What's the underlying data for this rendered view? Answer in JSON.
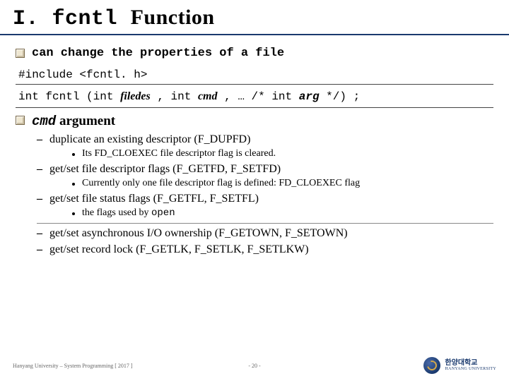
{
  "colors": {
    "title_underline": "#1a3a6e",
    "bullet_border": "#7a6a4a",
    "bullet_fill": "#eee6d0",
    "text": "#000000",
    "footer_text": "#666666",
    "logo_primary": "#1a3a6e",
    "logo_accent": "#d4a84a",
    "background": "#ffffff"
  },
  "title": {
    "numeral": "I.",
    "func": "fcntl",
    "word": "Function"
  },
  "intro": "can change the properties of a file",
  "include_line": "#include <fcntl. h>",
  "signature": {
    "ret": "int",
    "name": "fcntl",
    "open": "(int",
    "p1": "filedes",
    "sep1": ", int",
    "p2": "cmd",
    "sep2": ", … /* int",
    "p3": "arg",
    "tail": " */) ;"
  },
  "section": {
    "cmd": "cmd",
    "label": "argument"
  },
  "items": [
    {
      "text": "duplicate an existing descriptor (F_DUPFD)",
      "sub": "Its FD_CLOEXEC file descriptor flag is cleared."
    },
    {
      "text": "get/set file descriptor flags (F_GETFD, F_SETFD)",
      "sub": "Currently only one file descriptor flag is defined: FD_CLOEXEC flag"
    },
    {
      "text": "get/set file status flags (F_GETFL, F_SETFL)",
      "sub_prefix": "the flags used by ",
      "sub_mono": "open"
    },
    {
      "text": "get/set asynchronous I/O ownership (F_GETOWN, F_SETOWN)"
    },
    {
      "text": "get/set record lock (F_GETLK, F_SETLK, F_SETLKW)"
    }
  ],
  "footer": {
    "source": "Hanyang University – System Programming [ 2017 ]",
    "page": "- 20 -",
    "uni_kr": "한양대학교",
    "uni_en": "HANYANG UNIVERSITY"
  }
}
